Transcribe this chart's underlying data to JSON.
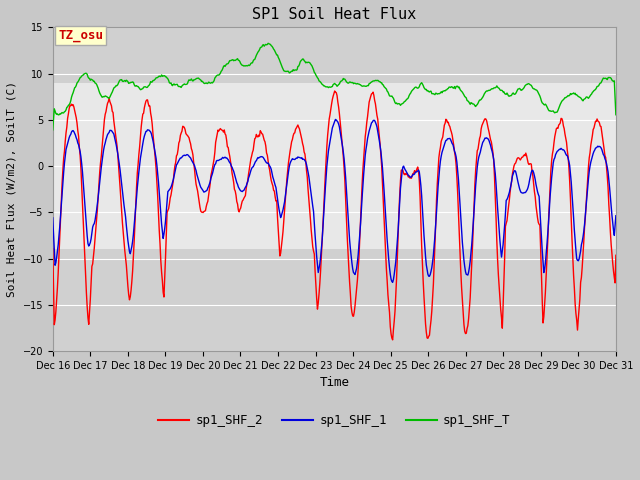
{
  "title": "SP1 Soil Heat Flux",
  "ylabel": "Soil Heat Flux (W/m2), SoilT (C)",
  "xlabel": "Time",
  "ylim": [
    -20,
    15
  ],
  "yticks": [
    -20,
    -15,
    -10,
    -5,
    0,
    5,
    10,
    15
  ],
  "xtick_labels": [
    "Dec 16",
    "Dec 17",
    "Dec 18",
    "Dec 19",
    "Dec 20",
    "Dec 21",
    "Dec 22",
    "Dec 23",
    "Dec 24",
    "Dec 25",
    "Dec 26",
    "Dec 27",
    "Dec 28",
    "Dec 29",
    "Dec 30",
    "Dec 31"
  ],
  "outer_bg": "#c8c8c8",
  "inner_bg_light": "#e8e8e8",
  "inner_bg_dark": "#d0d0d0",
  "grid_color": "#ffffff",
  "annotation_text": "TZ_osu",
  "annotation_bg": "#ffffcc",
  "annotation_border": "#aaaaaa",
  "annotation_color": "#cc0000",
  "line_colors": [
    "#ff0000",
    "#0000dd",
    "#00bb00"
  ],
  "line_labels": [
    "sp1_SHF_2",
    "sp1_SHF_1",
    "sp1_SHF_T"
  ],
  "legend_fontsize": 9,
  "title_fontsize": 11,
  "axis_label_fontsize": 8,
  "tick_fontsize": 7
}
